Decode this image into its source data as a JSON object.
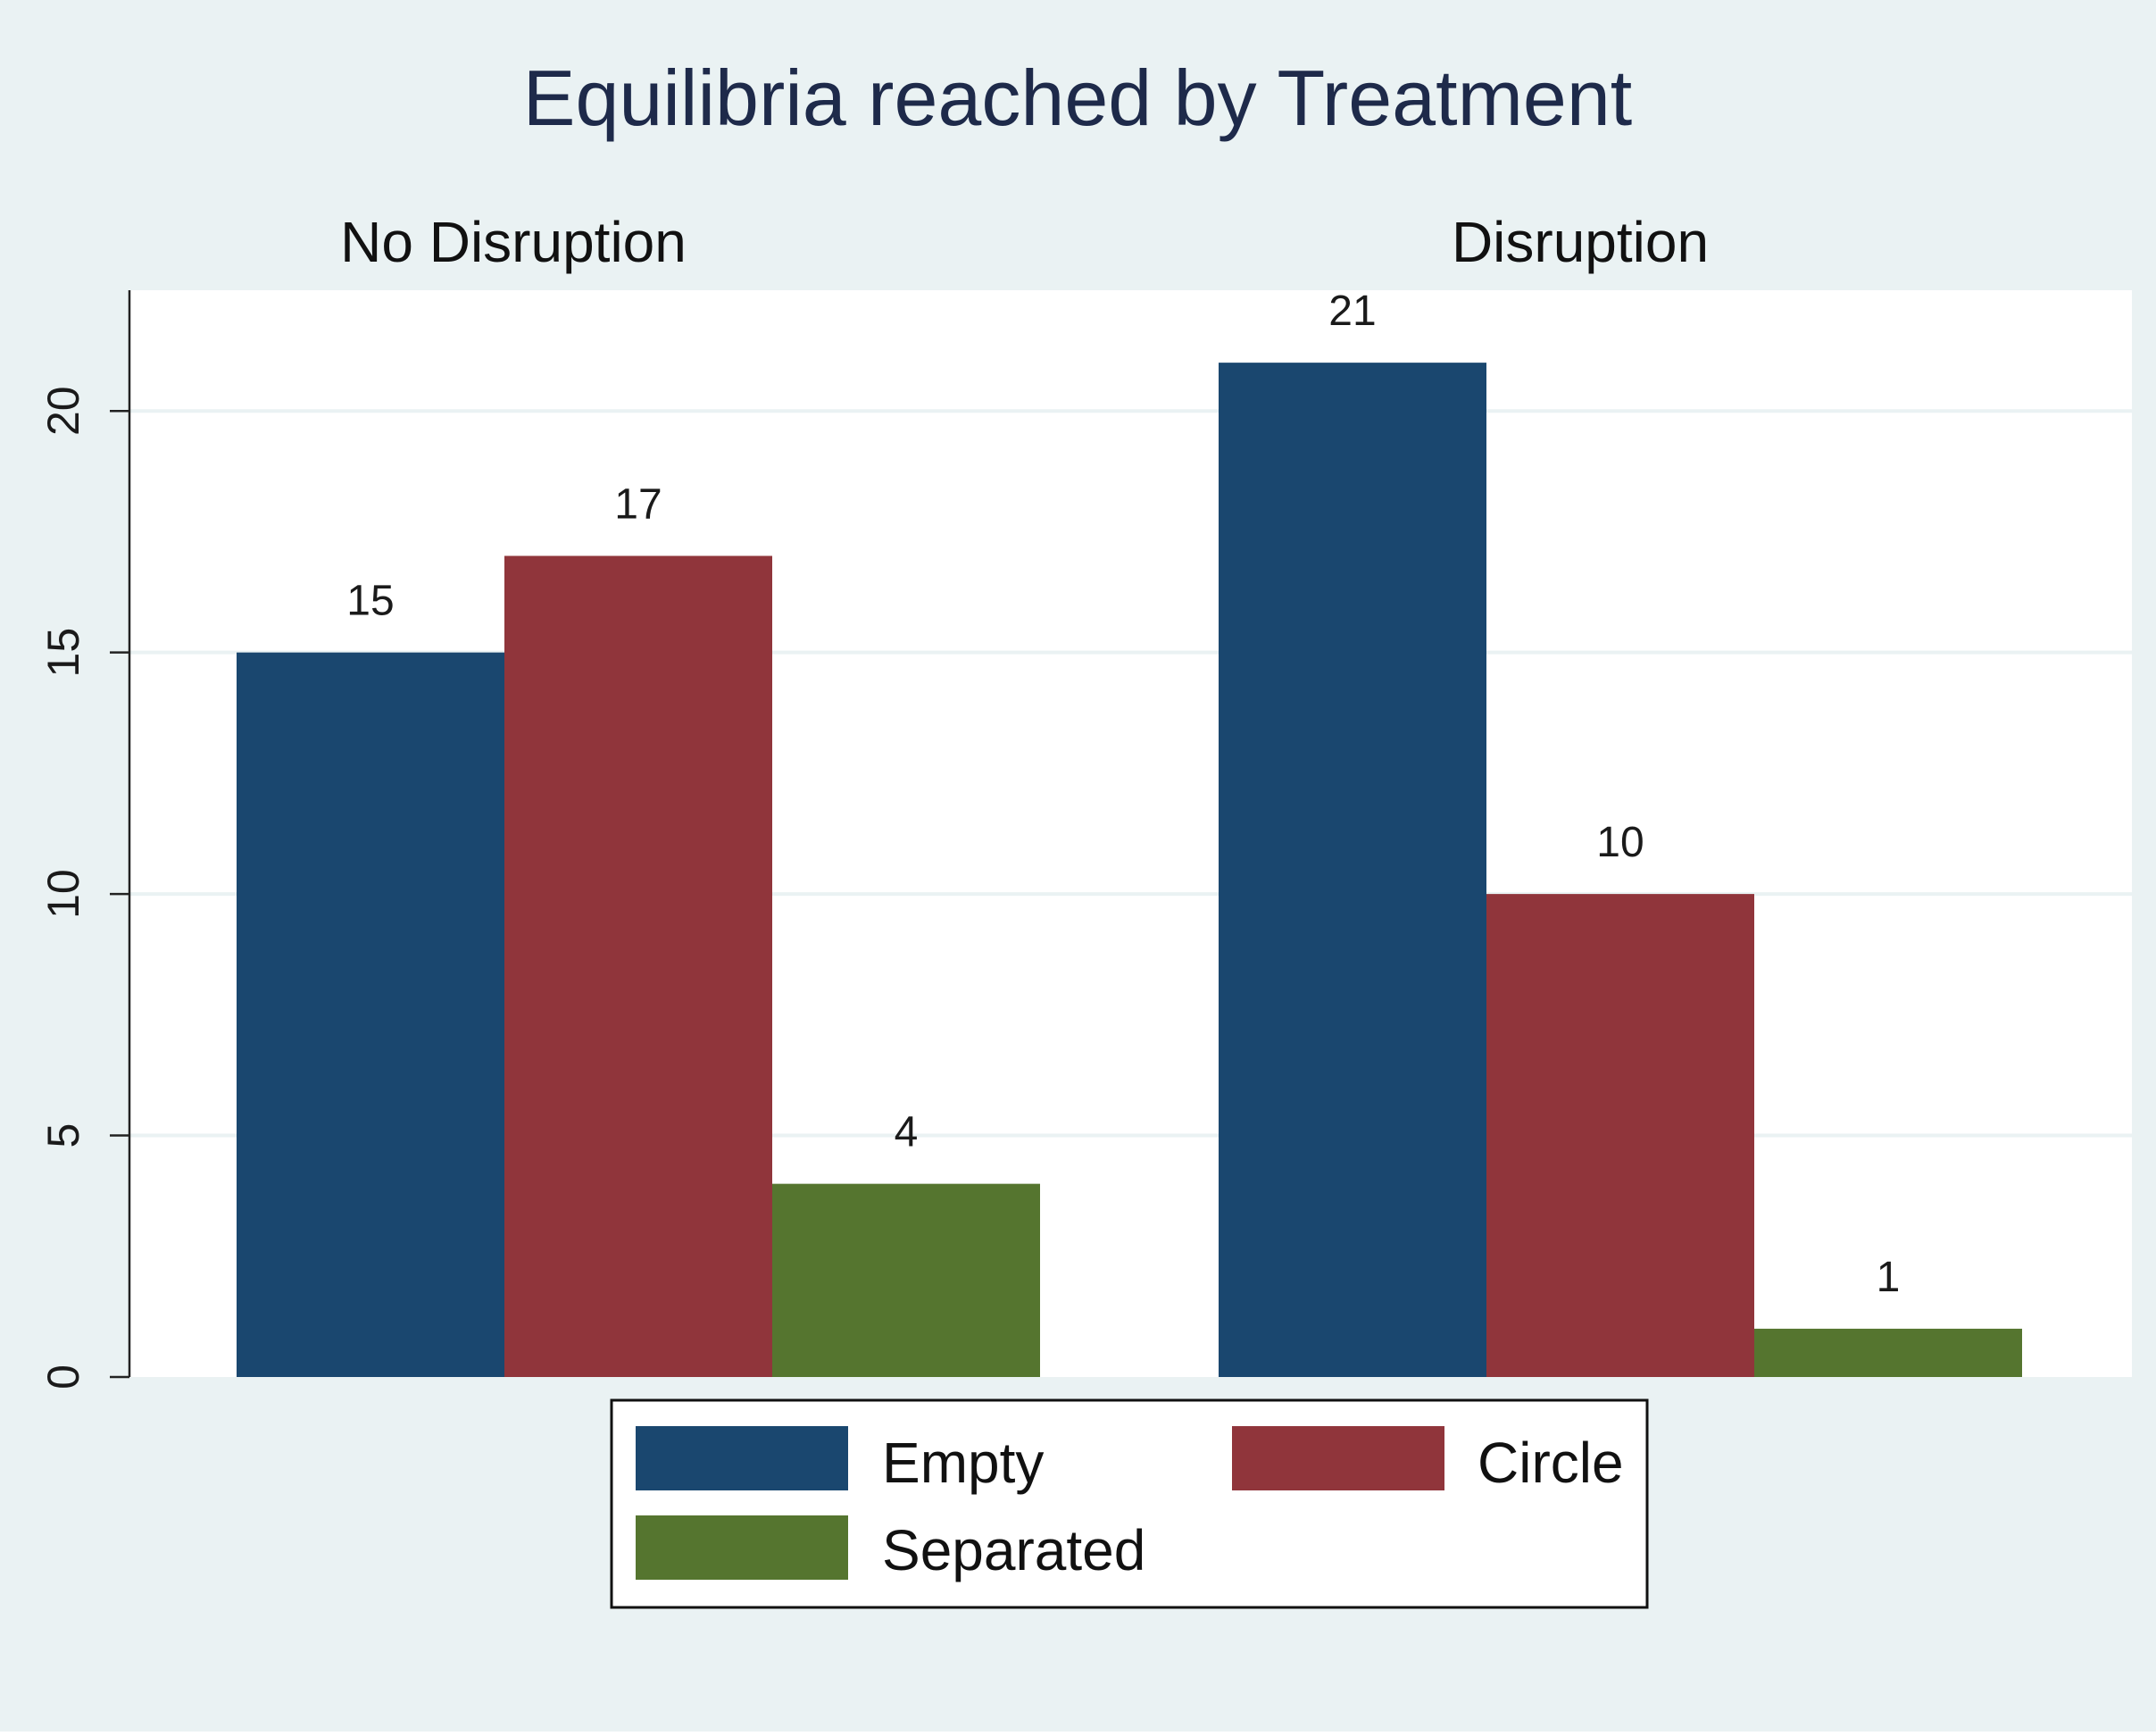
{
  "chart_data": {
    "type": "bar",
    "title": "Equilibria reached by Treatment",
    "panels": [
      {
        "label": "No Disruption",
        "series": [
          {
            "name": "Empty",
            "value": 15
          },
          {
            "name": "Circle",
            "value": 17
          },
          {
            "name": "Separated",
            "value": 4
          }
        ]
      },
      {
        "label": "Disruption",
        "series": [
          {
            "name": "Empty",
            "value": 21
          },
          {
            "name": "Circle",
            "value": 10
          },
          {
            "name": "Separated",
            "value": 1
          }
        ]
      }
    ],
    "ylim": [
      0,
      22.5
    ],
    "yticks": [
      0,
      5,
      10,
      15,
      20
    ],
    "ytick_labels": [
      "0",
      "5",
      "10",
      "15",
      "20"
    ],
    "grid": true,
    "legend": {
      "position": "bottom",
      "entries": [
        {
          "name": "Empty",
          "color": "#1a476f"
        },
        {
          "name": "Circle",
          "color": "#90353b"
        },
        {
          "name": "Separated",
          "color": "#55752f"
        }
      ]
    },
    "colors": {
      "Empty": "#1a476f",
      "Circle": "#90353b",
      "Separated": "#55752f",
      "background": "#eaf2f3",
      "plot_background": "#ffffff",
      "title_text": "#1e2a4a",
      "grid": "#eaf2f3"
    }
  }
}
